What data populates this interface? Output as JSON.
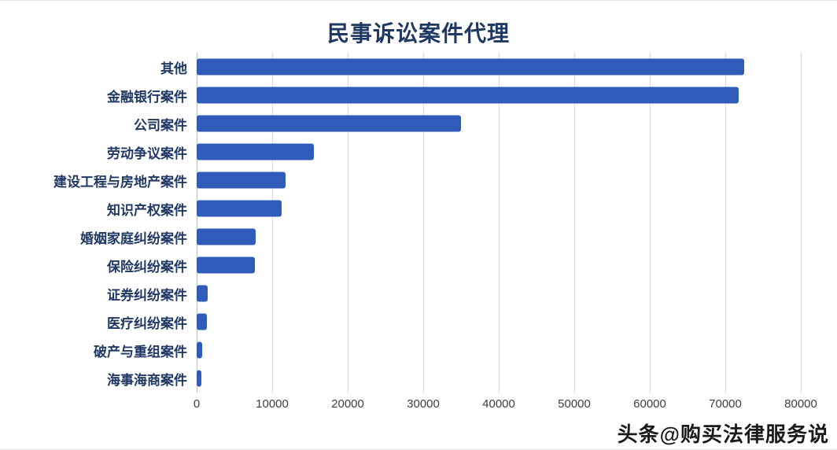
{
  "title": "民事诉讼案件代理",
  "chart_data": {
    "type": "bar",
    "orientation": "horizontal",
    "title": "民事诉讼案件代理",
    "categories": [
      "其他",
      "金融银行案件",
      "公司案件",
      "劳动争议案件",
      "建设工程与房地产案件",
      "知识产权案件",
      "婚姻家庭纠纷案件",
      "保险纠纷案件",
      "证券纠纷案件",
      "医疗纠纷案件",
      "破产与重组案件",
      "海事海商案件"
    ],
    "values": [
      72500,
      71800,
      35000,
      15500,
      11800,
      11200,
      7800,
      7700,
      1500,
      1400,
      700,
      650
    ],
    "xlabel": "",
    "ylabel": "",
    "xlim": [
      0,
      80000
    ],
    "x_ticks": [
      0,
      10000,
      20000,
      30000,
      40000,
      50000,
      60000,
      70000,
      80000
    ],
    "grid": true,
    "legend": false,
    "bar_color": "#2e5cb8",
    "label_color": "#1f3864",
    "gridline_color": "#d9d9d9"
  },
  "watermark": "头条@购买法律服务说"
}
